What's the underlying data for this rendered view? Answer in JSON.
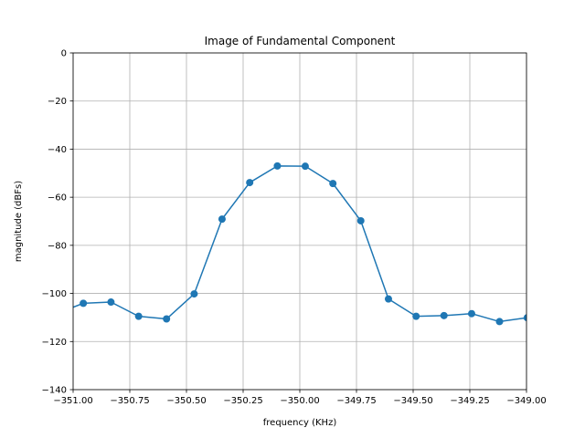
{
  "chart_data": {
    "type": "line",
    "title": "Image of Fundamental Component",
    "xlabel": "frequency (KHz)",
    "ylabel": "magnitude (dBFs)",
    "xlim": [
      -351.0,
      -349.0
    ],
    "ylim": [
      -140,
      0
    ],
    "grid": true,
    "xticks": [
      -351.0,
      -350.75,
      -350.5,
      -350.25,
      -350.0,
      -349.75,
      -349.5,
      -349.25,
      -349.0
    ],
    "xtick_labels": [
      "−351.00",
      "−350.75",
      "−350.50",
      "−350.25",
      "−350.00",
      "−349.75",
      "−349.50",
      "−349.25",
      "−349.00"
    ],
    "yticks": [
      0,
      -20,
      -40,
      -60,
      -80,
      -100,
      -120,
      -140
    ],
    "ytick_labels": [
      "0",
      "−20",
      "−40",
      "−60",
      "−80",
      "−100",
      "−120",
      "−140"
    ],
    "series": [
      {
        "color": "#1f77b4",
        "marker": "circle",
        "x": [
          -351.078,
          -350.955,
          -350.833,
          -350.711,
          -350.588,
          -350.466,
          -350.343,
          -350.221,
          -350.099,
          -349.976,
          -349.854,
          -349.731,
          -349.609,
          -349.487,
          -349.364,
          -349.242,
          -349.119,
          -348.997
        ],
        "y": [
          -108.6,
          -104.1,
          -103.6,
          -109.5,
          -110.6,
          -100.2,
          -69.1,
          -53.9,
          -47.0,
          -47.1,
          -54.3,
          -69.8,
          -102.3,
          -109.5,
          -109.2,
          -108.4,
          -111.7,
          -110.1
        ]
      }
    ]
  }
}
